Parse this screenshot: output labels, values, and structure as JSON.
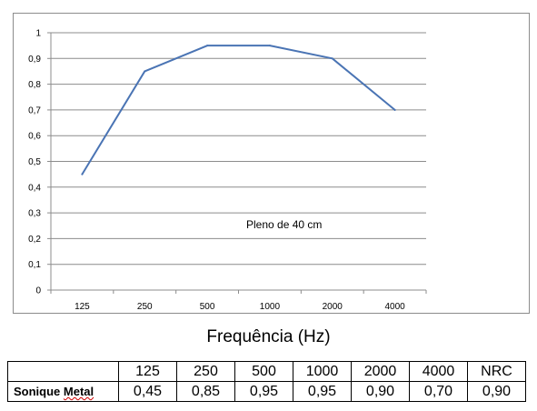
{
  "chart_data": {
    "type": "line",
    "categories": [
      "125",
      "250",
      "500",
      "1000",
      "2000",
      "4000"
    ],
    "series": [
      {
        "values": [
          0.45,
          0.85,
          0.95,
          0.95,
          0.9,
          0.7
        ],
        "color": "#4a74b4"
      }
    ],
    "y_ticks": [
      "0",
      "0,1",
      "0,2",
      "0,3",
      "0,4",
      "0,5",
      "0,6",
      "0,7",
      "0,8",
      "0,9",
      "1"
    ],
    "ylim": [
      0,
      1
    ],
    "grid": true,
    "legend": "none",
    "annotation": "Pleno de 40 cm",
    "xlabel": "Frequência (Hz)"
  },
  "table": {
    "header": [
      "",
      "125",
      "250",
      "500",
      "1000",
      "2000",
      "4000",
      "NRC"
    ],
    "row_label": "Sonique Metal",
    "row_label_main": "Sonique ",
    "row_label_marked": "Metal",
    "values": [
      "0,45",
      "0,85",
      "0,95",
      "0,95",
      "0,90",
      "0,70",
      "0,90"
    ]
  }
}
